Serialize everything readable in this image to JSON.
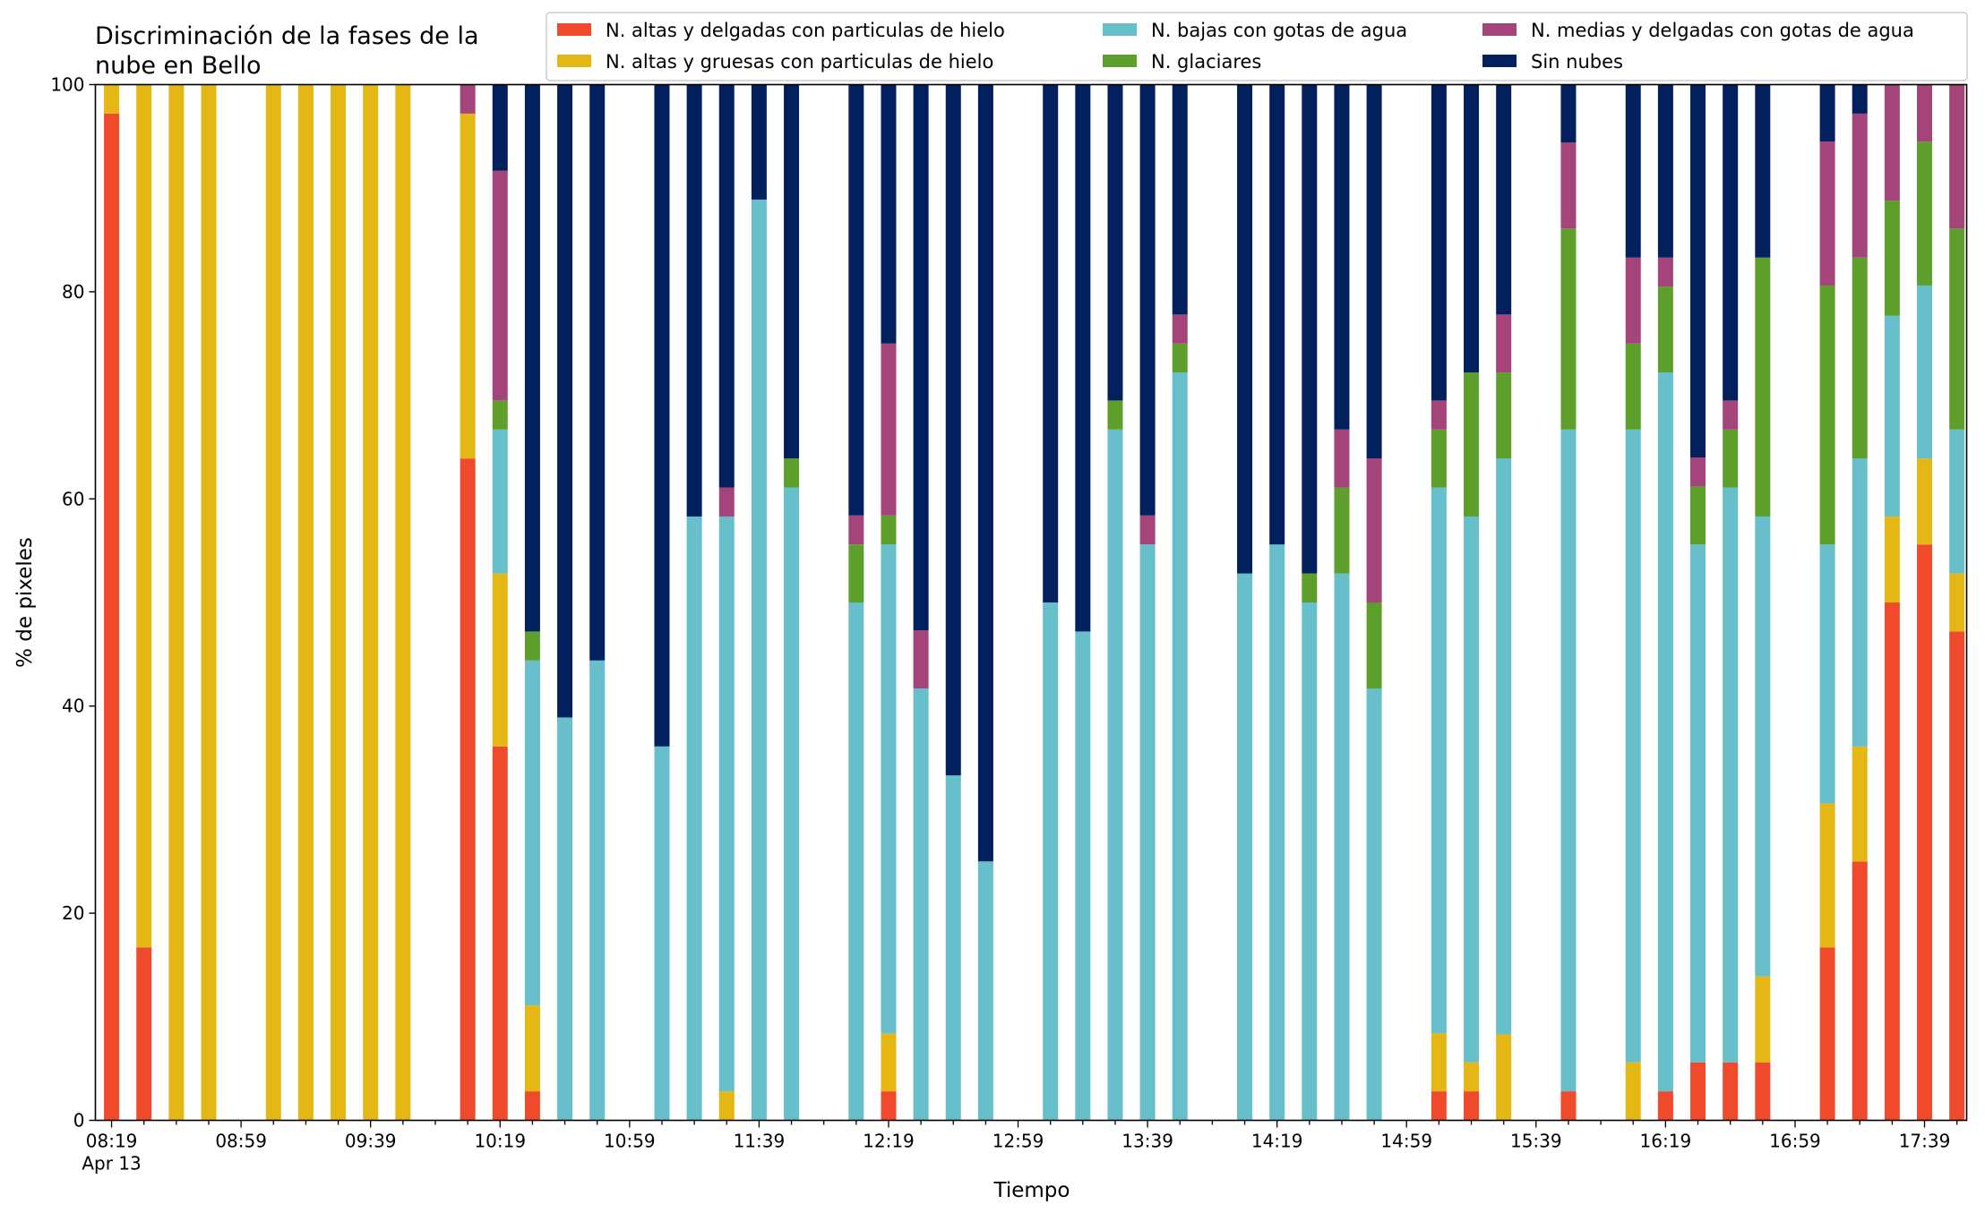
{
  "chart_data": {
    "type": "bar",
    "stacked": true,
    "title": "Discriminación de la fases de la\nnube en Bello",
    "xlabel": "Tiempo",
    "ylabel": "% de pixeles",
    "ylim": [
      0,
      100
    ],
    "yticks": [
      0,
      20,
      40,
      60,
      80,
      100
    ],
    "xlim": [
      494,
      1072
    ],
    "grid": false,
    "legend_position": "top",
    "x_major_ticks": [
      {
        "t": 499,
        "label": "08:19",
        "sublabel": "Apr 13"
      },
      {
        "t": 539,
        "label": "08:59"
      },
      {
        "t": 579,
        "label": "09:39"
      },
      {
        "t": 619,
        "label": "10:19"
      },
      {
        "t": 659,
        "label": "10:59"
      },
      {
        "t": 699,
        "label": "11:39"
      },
      {
        "t": 739,
        "label": "12:19"
      },
      {
        "t": 779,
        "label": "12:59"
      },
      {
        "t": 819,
        "label": "13:39"
      },
      {
        "t": 859,
        "label": "14:19"
      },
      {
        "t": 899,
        "label": "14:59"
      },
      {
        "t": 939,
        "label": "15:39"
      },
      {
        "t": 979,
        "label": "16:19"
      },
      {
        "t": 1019,
        "label": "16:59"
      },
      {
        "t": 1059,
        "label": "17:39"
      }
    ],
    "series": [
      {
        "name": "N. altas y delgadas con particulas de hielo",
        "color": "#ef4a2b"
      },
      {
        "name": "N. altas y gruesas con particulas de hielo",
        "color": "#e5b715"
      },
      {
        "name": "N. bajas con gotas de agua",
        "color": "#67bfcb"
      },
      {
        "name": "N. glaciares",
        "color": "#5e9f2c"
      },
      {
        "name": "N. medias y delgadas con gotas de agua",
        "color": "#a4447a"
      },
      {
        "name": "Sin nubes",
        "color": "#03205e"
      }
    ],
    "bars": [
      {
        "t": 499,
        "values": [
          97.2,
          2.8,
          0,
          0,
          0,
          0
        ]
      },
      {
        "t": 509,
        "values": [
          16.7,
          83.3,
          0,
          0,
          0,
          0
        ]
      },
      {
        "t": 519,
        "values": [
          0,
          100,
          0,
          0,
          0,
          0
        ]
      },
      {
        "t": 529,
        "values": [
          0,
          100,
          0,
          0,
          0,
          0
        ]
      },
      {
        "t": 549,
        "values": [
          0,
          100,
          0,
          0,
          0,
          0
        ]
      },
      {
        "t": 559,
        "values": [
          0,
          100,
          0,
          0,
          0,
          0
        ]
      },
      {
        "t": 569,
        "values": [
          0,
          100,
          0,
          0,
          0,
          0
        ]
      },
      {
        "t": 579,
        "values": [
          0,
          100,
          0,
          0,
          0,
          0
        ]
      },
      {
        "t": 589,
        "values": [
          0,
          100,
          0,
          0,
          0,
          0
        ]
      },
      {
        "t": 609,
        "values": [
          63.9,
          33.3,
          0,
          0,
          2.8,
          0
        ]
      },
      {
        "t": 619,
        "values": [
          36.1,
          16.7,
          13.9,
          2.8,
          22.2,
          8.3
        ]
      },
      {
        "t": 629,
        "values": [
          2.8,
          8.3,
          33.3,
          2.8,
          0,
          52.8
        ]
      },
      {
        "t": 639,
        "values": [
          0,
          0,
          38.9,
          0,
          0,
          61.1
        ]
      },
      {
        "t": 649,
        "values": [
          0,
          0,
          44.4,
          0,
          0,
          55.6
        ]
      },
      {
        "t": 669,
        "values": [
          0,
          0,
          36.1,
          0,
          0,
          63.9
        ]
      },
      {
        "t": 679,
        "values": [
          0,
          0,
          58.3,
          0,
          0,
          41.7
        ]
      },
      {
        "t": 689,
        "values": [
          0,
          2.8,
          55.5,
          0,
          2.8,
          38.9
        ]
      },
      {
        "t": 699,
        "values": [
          0,
          0,
          88.9,
          0,
          0,
          11.1
        ]
      },
      {
        "t": 709,
        "values": [
          0,
          0,
          61.1,
          2.8,
          0,
          36.1
        ]
      },
      {
        "t": 729,
        "values": [
          0,
          0,
          50.0,
          5.6,
          2.8,
          41.6
        ]
      },
      {
        "t": 739,
        "values": [
          2.8,
          5.6,
          47.2,
          2.8,
          16.6,
          25.0
        ]
      },
      {
        "t": 749,
        "values": [
          0,
          0,
          41.7,
          0,
          5.6,
          52.7
        ]
      },
      {
        "t": 759,
        "values": [
          0,
          0,
          33.3,
          0,
          0,
          66.7
        ]
      },
      {
        "t": 769,
        "values": [
          0,
          0,
          25.0,
          0,
          0,
          75.0
        ]
      },
      {
        "t": 789,
        "values": [
          0,
          0,
          50.0,
          0,
          0,
          50.0
        ]
      },
      {
        "t": 799,
        "values": [
          0,
          0,
          47.2,
          0,
          0,
          52.8
        ]
      },
      {
        "t": 809,
        "values": [
          0,
          0,
          66.7,
          2.8,
          0,
          30.5
        ]
      },
      {
        "t": 819,
        "values": [
          0,
          0,
          55.6,
          0,
          2.8,
          41.6
        ]
      },
      {
        "t": 829,
        "values": [
          0,
          0,
          72.2,
          2.8,
          2.8,
          22.2
        ]
      },
      {
        "t": 849,
        "values": [
          0,
          0,
          52.8,
          0,
          0,
          47.2
        ]
      },
      {
        "t": 859,
        "values": [
          0,
          0,
          55.6,
          0,
          0,
          44.4
        ]
      },
      {
        "t": 869,
        "values": [
          0,
          0,
          50.0,
          2.8,
          0,
          47.2
        ]
      },
      {
        "t": 879,
        "values": [
          0,
          0,
          52.8,
          8.3,
          5.6,
          33.3
        ]
      },
      {
        "t": 889,
        "values": [
          0,
          0,
          41.7,
          8.3,
          13.9,
          36.1
        ]
      },
      {
        "t": 909,
        "values": [
          2.8,
          5.6,
          52.7,
          5.6,
          2.8,
          30.5
        ]
      },
      {
        "t": 919,
        "values": [
          2.8,
          2.8,
          52.7,
          13.9,
          0,
          27.8
        ]
      },
      {
        "t": 929,
        "values": [
          0,
          8.3,
          55.6,
          8.3,
          5.6,
          22.2
        ]
      },
      {
        "t": 949,
        "values": [
          2.8,
          0,
          63.9,
          19.4,
          8.3,
          5.6
        ]
      },
      {
        "t": 969,
        "values": [
          0,
          5.6,
          61.1,
          8.3,
          8.3,
          16.7
        ]
      },
      {
        "t": 979,
        "values": [
          2.8,
          0,
          69.4,
          8.3,
          2.8,
          16.7
        ]
      },
      {
        "t": 989,
        "values": [
          5.6,
          0,
          50.0,
          5.6,
          2.8,
          36.0
        ]
      },
      {
        "t": 999,
        "values": [
          5.6,
          0,
          55.5,
          5.6,
          2.8,
          30.5
        ]
      },
      {
        "t": 1009,
        "values": [
          5.6,
          8.3,
          44.4,
          25.0,
          0,
          16.7
        ]
      },
      {
        "t": 1029,
        "values": [
          16.7,
          13.9,
          25.0,
          25.0,
          13.9,
          5.5
        ]
      },
      {
        "t": 1039,
        "values": [
          25.0,
          11.1,
          27.8,
          19.4,
          13.9,
          2.8
        ]
      },
      {
        "t": 1049,
        "values": [
          50.0,
          8.3,
          19.4,
          11.1,
          11.2,
          0
        ]
      },
      {
        "t": 1059,
        "values": [
          55.6,
          8.3,
          16.7,
          13.9,
          5.5,
          0
        ]
      },
      {
        "t": 1069,
        "values": [
          47.2,
          5.6,
          13.9,
          19.4,
          13.9,
          0
        ]
      }
    ]
  }
}
